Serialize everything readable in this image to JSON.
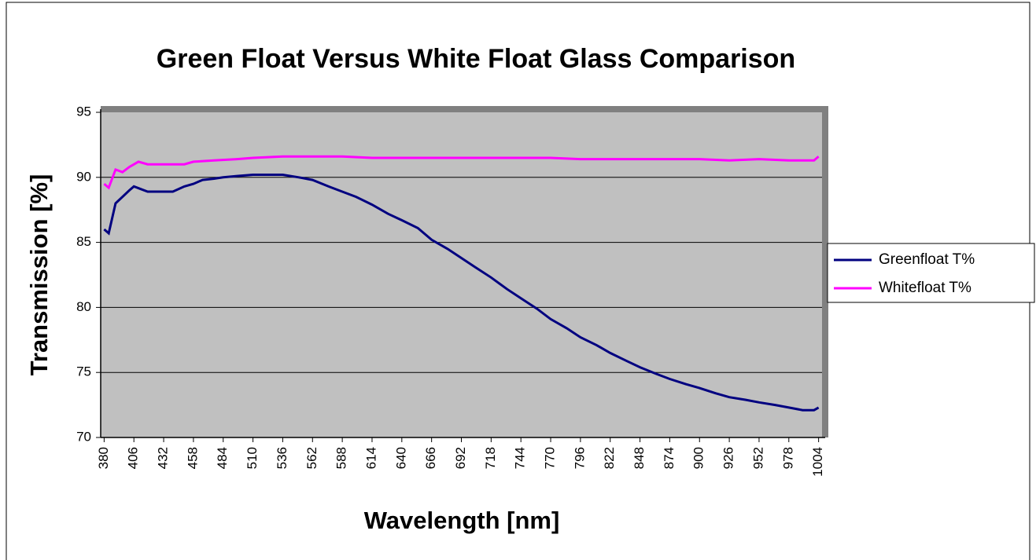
{
  "chart_data": {
    "type": "line",
    "title": "Green Float Versus White Float Glass Comparison",
    "x_label": "Wavelength [nm]",
    "y_label": "Transmission [%]",
    "xlim": [
      377,
      1007
    ],
    "xticks": [
      380,
      406,
      432,
      458,
      484,
      510,
      536,
      562,
      588,
      614,
      640,
      666,
      692,
      718,
      744,
      770,
      796,
      822,
      848,
      874,
      900,
      926,
      952,
      978,
      1004
    ],
    "ylim": [
      70,
      95
    ],
    "yticks": [
      70,
      75,
      80,
      85,
      90,
      95
    ],
    "grid": true,
    "legend": "right",
    "series": [
      {
        "name": "Greenfloat T%",
        "color": "#000080",
        "x": [
          380,
          384,
          390,
          396,
          402,
          406,
          412,
          418,
          426,
          432,
          440,
          450,
          458,
          466,
          476,
          484,
          496,
          510,
          524,
          536,
          550,
          562,
          576,
          588,
          600,
          614,
          628,
          640,
          654,
          666,
          680,
          692,
          704,
          718,
          732,
          744,
          758,
          770,
          784,
          796,
          810,
          822,
          836,
          848,
          862,
          874,
          888,
          900,
          914,
          926,
          940,
          952,
          966,
          978,
          990,
          1000,
          1004
        ],
        "values": [
          86.0,
          85.7,
          88.0,
          88.5,
          89.0,
          89.3,
          89.1,
          88.9,
          88.9,
          88.9,
          88.9,
          89.3,
          89.5,
          89.8,
          89.9,
          90.0,
          90.1,
          90.2,
          90.2,
          90.2,
          90.0,
          89.8,
          89.3,
          88.9,
          88.5,
          87.9,
          87.2,
          86.7,
          86.1,
          85.2,
          84.5,
          83.8,
          83.1,
          82.3,
          81.4,
          80.7,
          79.9,
          79.1,
          78.4,
          77.7,
          77.1,
          76.5,
          75.9,
          75.4,
          74.9,
          74.5,
          74.1,
          73.8,
          73.4,
          73.1,
          72.9,
          72.7,
          72.5,
          72.3,
          72.1,
          72.1,
          72.3
        ]
      },
      {
        "name": "Whitefloat T%",
        "color": "#ff00ff",
        "x": [
          380,
          384,
          390,
          396,
          402,
          410,
          418,
          432,
          450,
          458,
          476,
          496,
          510,
          536,
          562,
          588,
          614,
          640,
          666,
          692,
          718,
          744,
          770,
          796,
          822,
          848,
          874,
          900,
          926,
          952,
          978,
          1000,
          1004
        ],
        "values": [
          89.5,
          89.2,
          90.6,
          90.4,
          90.8,
          91.2,
          91.0,
          91.0,
          91.0,
          91.2,
          91.3,
          91.4,
          91.5,
          91.6,
          91.6,
          91.6,
          91.5,
          91.5,
          91.5,
          91.5,
          91.5,
          91.5,
          91.5,
          91.4,
          91.4,
          91.4,
          91.4,
          91.4,
          91.3,
          91.4,
          91.3,
          91.3,
          91.6
        ]
      }
    ]
  }
}
